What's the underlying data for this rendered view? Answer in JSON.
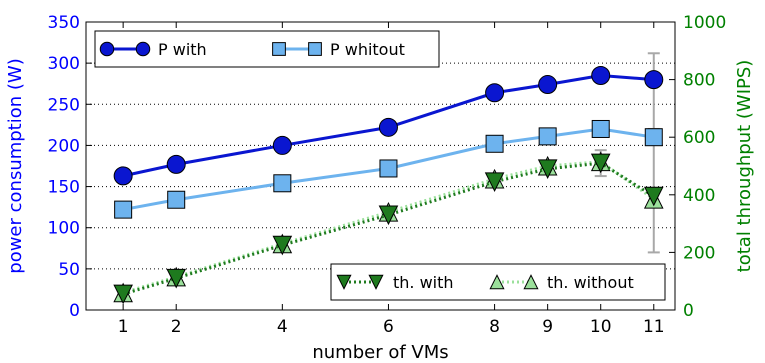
{
  "chart_data": {
    "type": "line",
    "xlabel": "number of VMs",
    "ylabel_left": "power consumption (W)",
    "ylabel_right": "total throughput (WIPS)",
    "x": [
      1,
      2,
      4,
      6,
      8,
      9,
      10,
      11
    ],
    "x_ticks": [
      "1",
      "2",
      "4",
      "6",
      "8",
      "9",
      "10",
      "11"
    ],
    "xlim": [
      0.3,
      11.4
    ],
    "ylim_left": [
      0,
      350
    ],
    "ylim_right": [
      0,
      1000
    ],
    "y_ticks_left": [
      0,
      50,
      100,
      150,
      200,
      250,
      300,
      350
    ],
    "y_ticks_right": [
      0,
      200,
      400,
      600,
      800,
      1000
    ],
    "grid": "horizontal dotted",
    "colors": {
      "left_axis": "#0000ff",
      "right_axis": "#008000",
      "p_with": "#0a16d0",
      "p_without": "#6db3ee",
      "th_with": "#1e7a1e",
      "th_without": "#9be09b",
      "error_bar": "#a8a8a8"
    },
    "series": [
      {
        "name": "P with",
        "axis": "left",
        "marker": "circle",
        "style": "solid",
        "values": [
          163,
          177,
          200,
          222,
          264,
          274,
          285,
          280
        ]
      },
      {
        "name": "P whitout",
        "axis": "left",
        "marker": "square",
        "style": "solid",
        "values": [
          122,
          134,
          154,
          172,
          202,
          211,
          220,
          210
        ]
      },
      {
        "name": "th. with",
        "axis": "right",
        "marker": "triangle-down",
        "style": "dotted",
        "values": [
          55,
          110,
          225,
          330,
          445,
          490,
          510,
          395
        ]
      },
      {
        "name": "th. without",
        "axis": "right",
        "marker": "triangle-up",
        "style": "dotted",
        "values": [
          60,
          115,
          230,
          340,
          455,
          500,
          515,
          385
        ]
      }
    ],
    "error_bars": [
      {
        "series": "P with",
        "x": 11,
        "low": 220,
        "high": 312
      },
      {
        "series": "th. with",
        "x": 11,
        "low": 200,
        "high": 600
      },
      {
        "series": "th. without",
        "x": 10,
        "low": 465,
        "high": 555
      }
    ],
    "legend_top": {
      "placement": "top-left",
      "items": [
        "P with",
        "P whitout"
      ]
    },
    "legend_bottom": {
      "placement": "bottom-right",
      "items": [
        "th. with",
        "th. without"
      ]
    }
  }
}
